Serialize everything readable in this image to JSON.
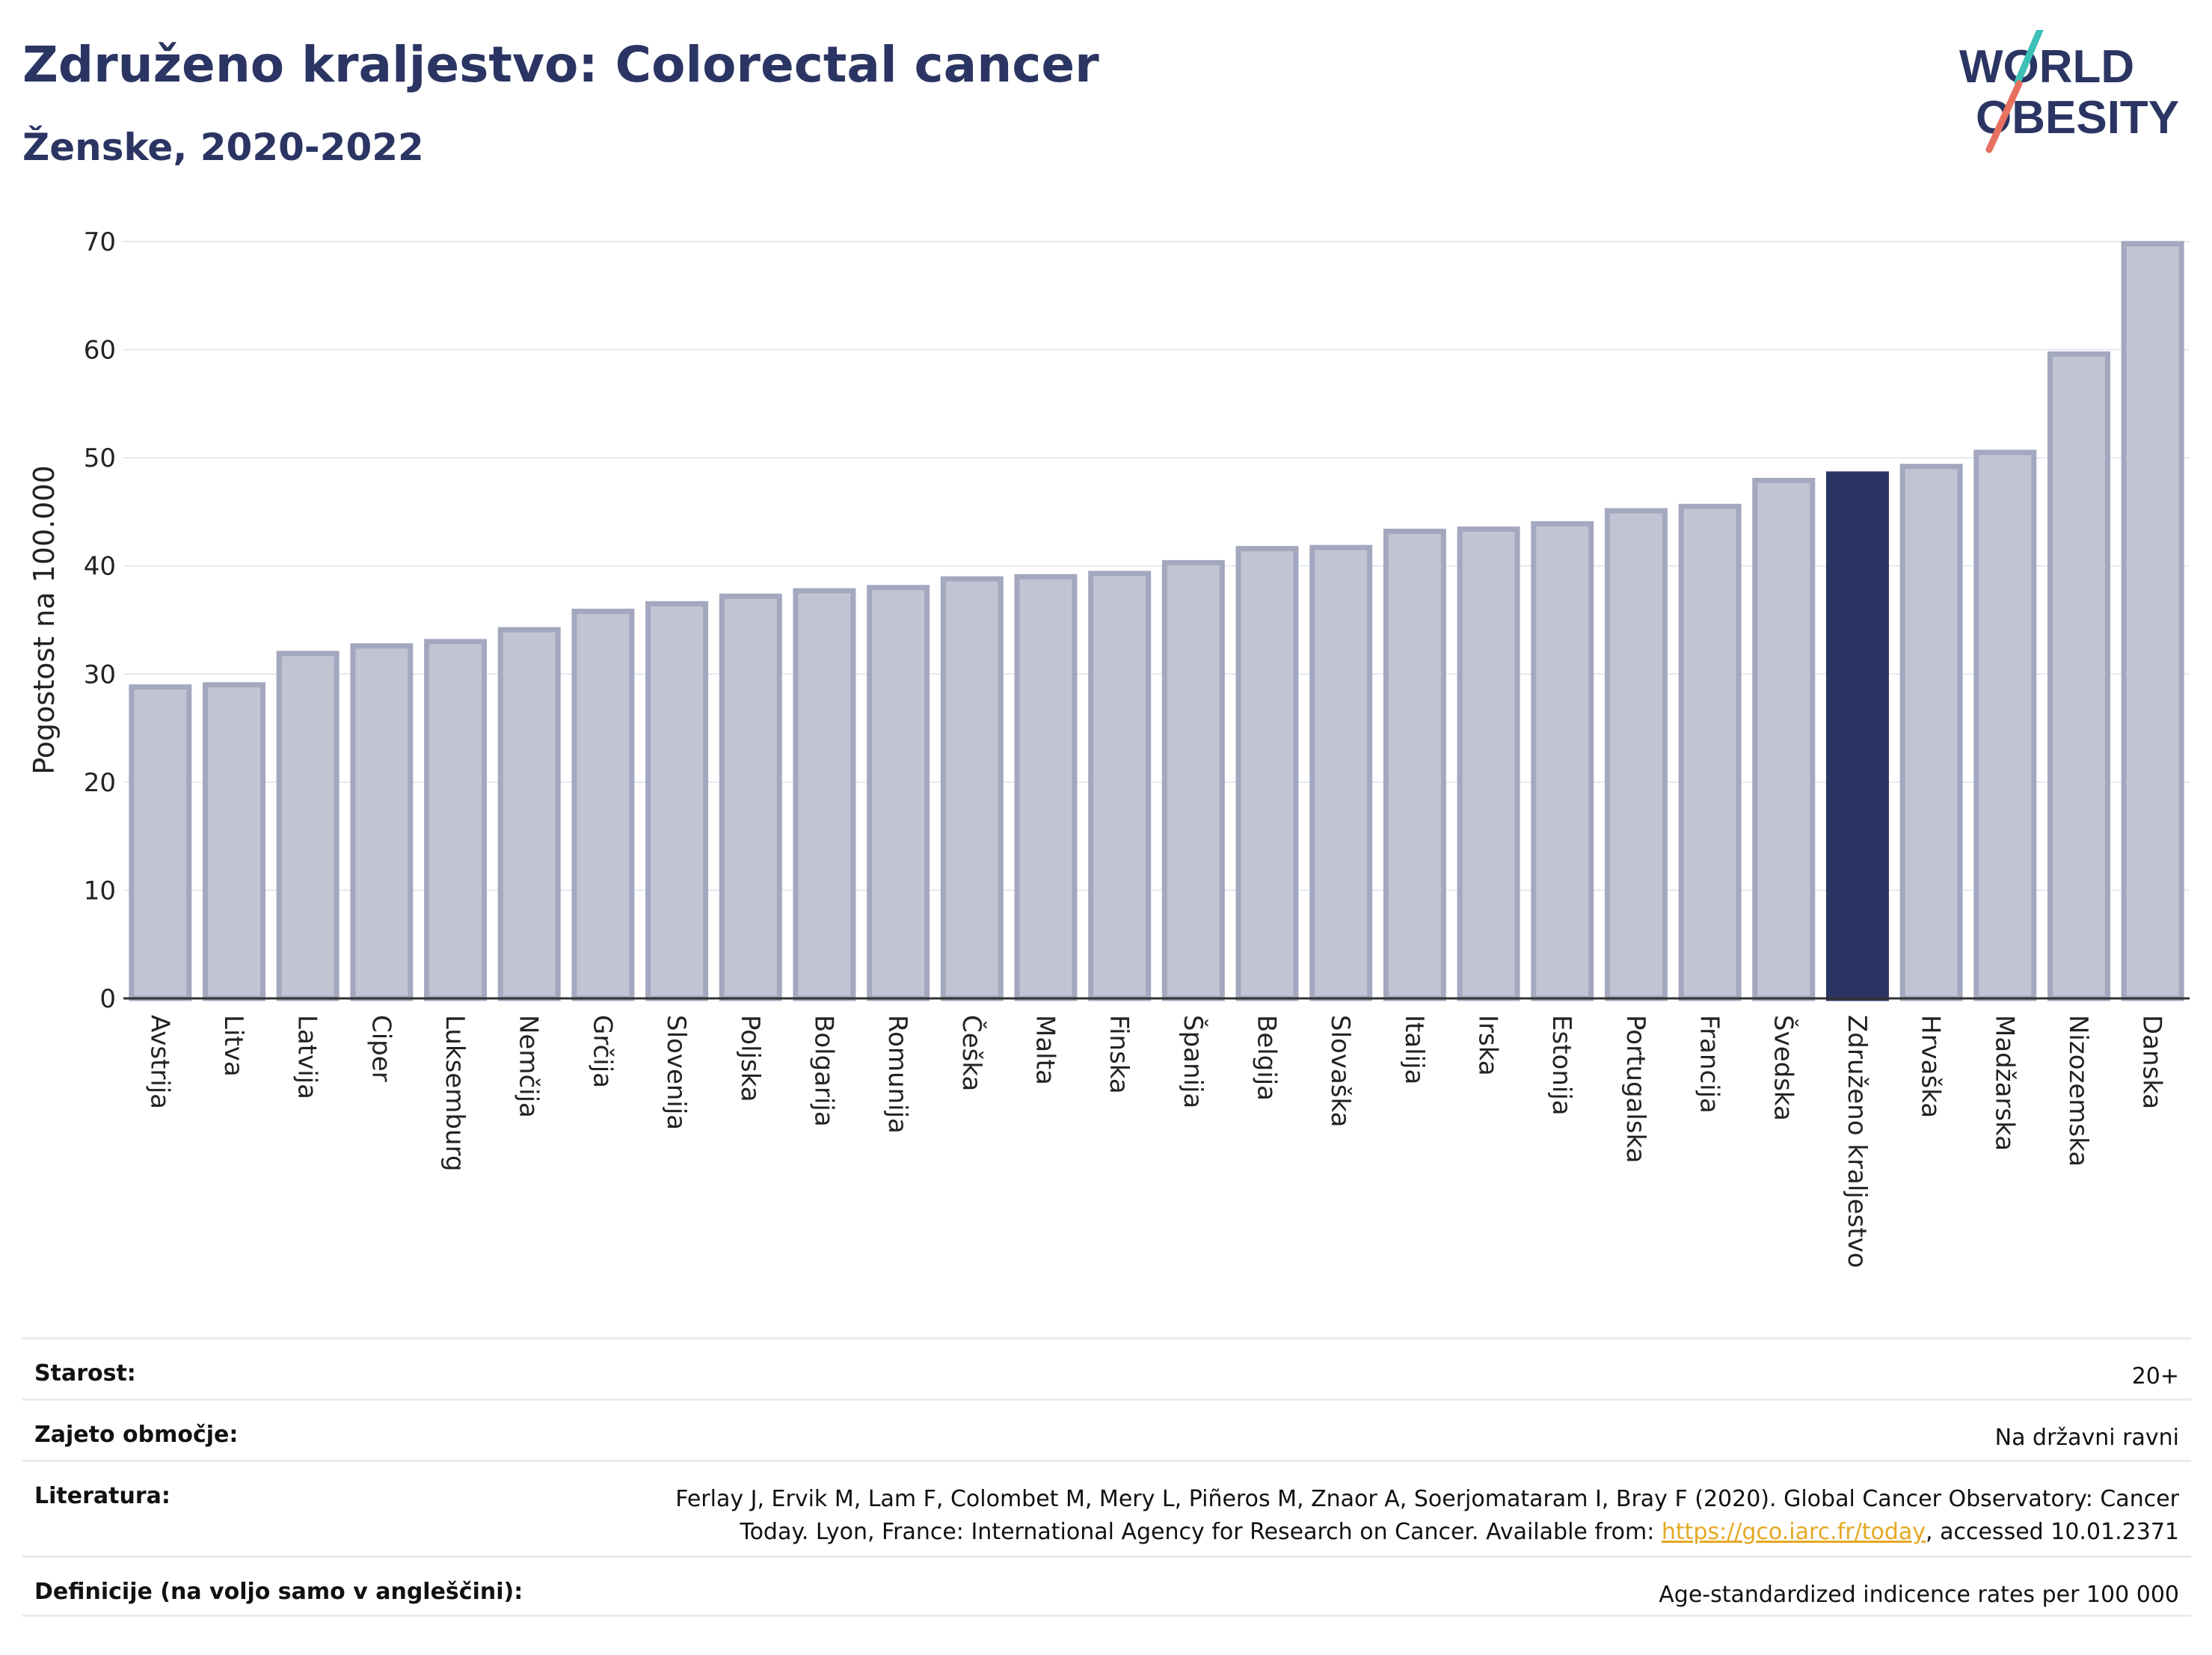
{
  "header": {
    "title": "Združeno kraljestvo: Colorectal cancer",
    "subtitle": "Ženske, 2020-2022"
  },
  "logo": {
    "line1": "WORLD",
    "line2": "OBESITY",
    "colors": {
      "text": "#2b3563",
      "slash_top": "#3cc0b5",
      "slash_bottom": "#e8705f"
    }
  },
  "chart_data": {
    "type": "bar",
    "ylabel": "Pogostost na 100.000",
    "ylim": [
      0,
      70
    ],
    "yticks": [
      0,
      10,
      20,
      30,
      40,
      50,
      60,
      70
    ],
    "grid": true,
    "categories": [
      "Avstrija",
      "Litva",
      "Latvija",
      "Ciper",
      "Luksemburg",
      "Nemčija",
      "Grčija",
      "Slovenija",
      "Poljska",
      "Bolgarija",
      "Romunija",
      "Češka",
      "Malta",
      "Finska",
      "Španija",
      "Belgija",
      "Slovaška",
      "Italija",
      "Irska",
      "Estonija",
      "Portugalska",
      "Francija",
      "Švedska",
      "Združeno kraljestvo",
      "Hrvaška",
      "Madžarska",
      "Nizozemska",
      "Danska"
    ],
    "values": [
      28.8,
      29.0,
      31.9,
      32.6,
      33.0,
      34.1,
      35.8,
      36.5,
      37.2,
      37.7,
      38.0,
      38.8,
      39.0,
      39.3,
      40.3,
      41.6,
      41.7,
      43.2,
      43.4,
      43.9,
      45.1,
      45.5,
      47.9,
      48.5,
      49.2,
      50.5,
      59.6,
      69.8
    ],
    "highlight": "Združeno kraljestvo",
    "colors": {
      "bar": "#c1c4d3",
      "bar_border": "#a3a8bf",
      "highlight": "#2b3563",
      "grid": "#e6e8ef"
    }
  },
  "meta": {
    "rows": [
      {
        "label": "Starost:",
        "value": "20+"
      },
      {
        "label": "Zajeto območje:",
        "value": "Na državni ravni"
      },
      {
        "label": "Literatura:",
        "value_line1": "Ferlay J, Ervik M, Lam F, Colombet M, Mery L, Piñeros M, Znaor A, Soerjomataram I, Bray F (2020). Global Cancer Observatory: Cancer",
        "value_line2_pre": "Today. Lyon, France: International Agency for Research on Cancer. Available from: ",
        "link": "https://gco.iarc.fr/today",
        "value_line2_post": ", accessed 10.01.2371"
      },
      {
        "label": "Definicije (na voljo samo v angleščini):",
        "value": "Age-standardized indicence rates per 100 000"
      }
    ]
  }
}
